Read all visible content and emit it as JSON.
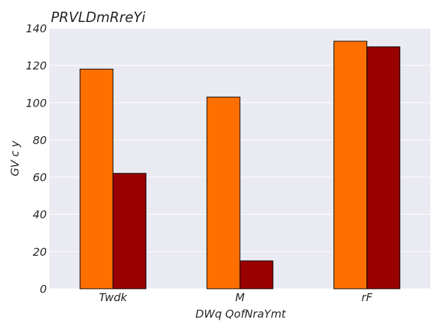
{
  "chart_data": {
    "type": "bar",
    "title": "PRVLDmRreYi",
    "xlabel": "DWq QofNraYmt",
    "ylabel": "GV c y",
    "categories": [
      "Twdk",
      "M",
      "rF"
    ],
    "series": [
      {
        "values": [
          118,
          103,
          133
        ],
        "color": "#ff6f00"
      },
      {
        "values": [
          62,
          15,
          130
        ],
        "color": "#990000"
      }
    ],
    "ylim": [
      0,
      140
    ],
    "yticks": [
      0,
      20,
      40,
      60,
      80,
      100,
      120,
      140
    ],
    "grid": true,
    "background": "#eaeaf2",
    "legend": "none"
  }
}
